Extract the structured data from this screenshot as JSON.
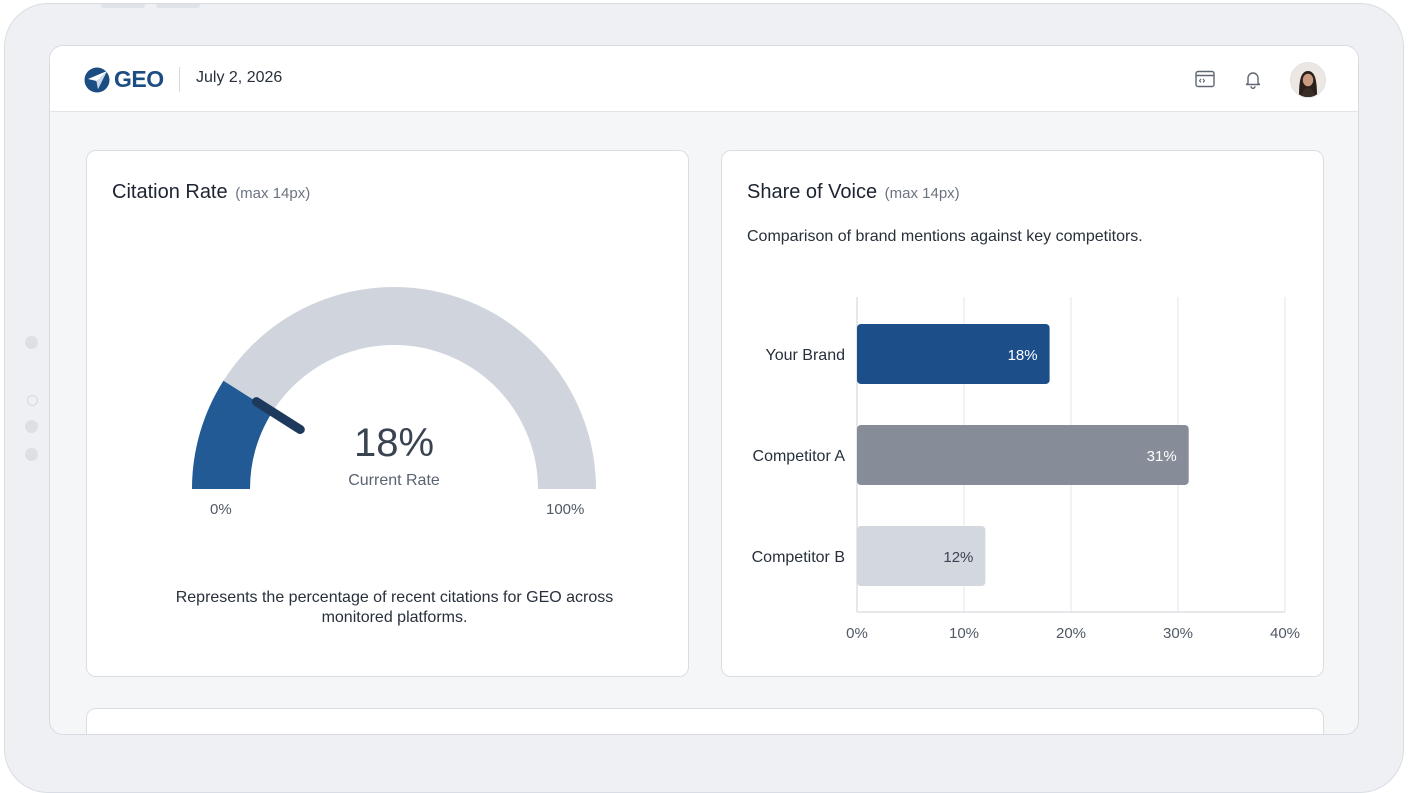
{
  "header": {
    "logo_text": "GEO",
    "date": "July 2, 2026",
    "icons": [
      "code-window-icon",
      "bell-icon"
    ]
  },
  "citation_card": {
    "title": "Citation Rate",
    "title_note": "(max 14px)",
    "value_label": "18%",
    "value": 18,
    "caption": "Current Rate",
    "min_label": "0%",
    "max_label": "100%",
    "description": "Represents the percentage of recent citations for GEO across monitored platforms."
  },
  "sov_card": {
    "title": "Share of Voice",
    "title_note": "(max 14px)",
    "subtitle": "Comparison of brand mentions against key competitors."
  },
  "chart_data": {
    "type": "bar",
    "orientation": "horizontal",
    "categories": [
      "Your Brand",
      "Competitor A",
      "Competitor B"
    ],
    "values": [
      18,
      31,
      12
    ],
    "value_labels": [
      "18%",
      "31%",
      "12%"
    ],
    "xlim": [
      0,
      40
    ],
    "xticks": [
      "0%",
      "10%",
      "20%",
      "30%",
      "40%"
    ],
    "colors": [
      "#1c4f8a",
      "#868d98",
      "#d3d7de"
    ],
    "grid": true
  },
  "colors": {
    "accent": "#1c4d82",
    "gauge_fill": "#225a95",
    "gauge_track": "#d0d5dd",
    "needle": "#1d3a5c"
  }
}
